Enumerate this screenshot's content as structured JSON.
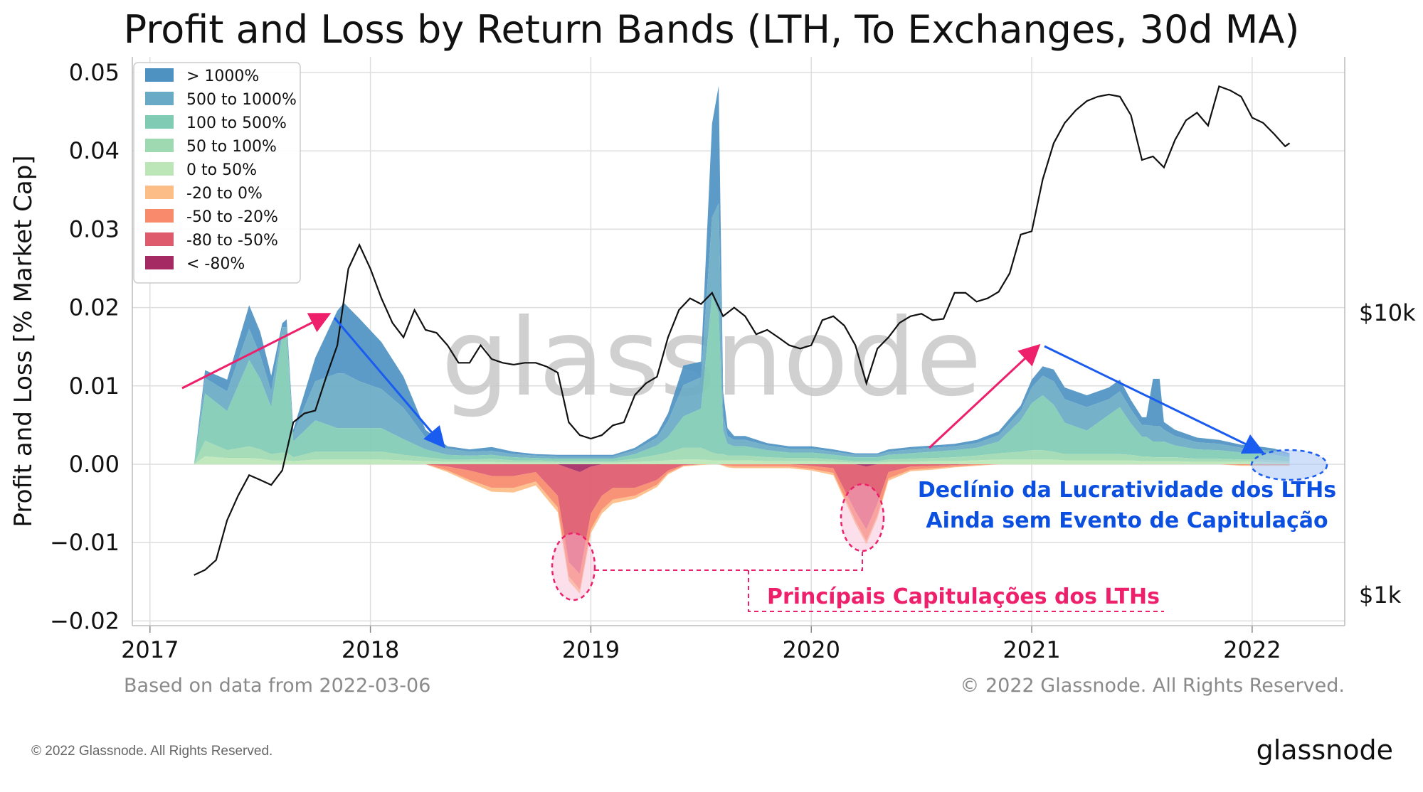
{
  "chart_data": {
    "type": "area",
    "title": "Profit and Loss by Return Bands (LTH, To Exchanges, 30d MA)",
    "ylabel": "Profit and Loss [% Market Cap]",
    "ylim": [
      -0.02,
      0.05
    ],
    "y_ticks": [
      "0.05",
      "0.04",
      "0.03",
      "0.02",
      "0.01",
      "0.00",
      "−0.01",
      "−0.02"
    ],
    "x_ticks": [
      "2017",
      "2018",
      "2019",
      "2020",
      "2021",
      "2022"
    ],
    "right_axis_ticks": [
      "$10k",
      "$1k"
    ],
    "grid": true,
    "legend_position": "top-left",
    "legend": [
      {
        "label": "> 1000%",
        "color": "#4e92c2"
      },
      {
        "label": "500 to 1000%",
        "color": "#69abc6"
      },
      {
        "label": "100 to 500%",
        "color": "#7fcbb4"
      },
      {
        "label": "50 to 100%",
        "color": "#9fd9b2"
      },
      {
        "label": "0 to 50%",
        "color": "#bde6b8"
      },
      {
        "label": "-20 to 0%",
        "color": "#fdbd87"
      },
      {
        "label": "-50 to -20%",
        "color": "#f98a6b"
      },
      {
        "label": "-80 to -50%",
        "color": "#de5a6d"
      },
      {
        "label": "< -80%",
        "color": "#a52a63"
      }
    ],
    "x": [
      2017.2,
      2017.25,
      2017.35,
      2017.45,
      2017.5,
      2017.55,
      2017.6,
      2017.62,
      2017.65,
      2017.75,
      2017.85,
      2017.88,
      2017.95,
      2018.05,
      2018.15,
      2018.25,
      2018.35,
      2018.45,
      2018.55,
      2018.65,
      2018.75,
      2018.85,
      2018.9,
      2018.95,
      2019.0,
      2019.05,
      2019.1,
      2019.2,
      2019.3,
      2019.35,
      2019.42,
      2019.5,
      2019.55,
      2019.58,
      2019.6,
      2019.62,
      2019.65,
      2019.7,
      2019.8,
      2019.9,
      2020.0,
      2020.1,
      2020.2,
      2020.25,
      2020.3,
      2020.35,
      2020.45,
      2020.55,
      2020.65,
      2020.75,
      2020.85,
      2020.95,
      2021.0,
      2021.05,
      2021.1,
      2021.15,
      2021.25,
      2021.35,
      2021.4,
      2021.45,
      2021.5,
      2021.52,
      2021.55,
      2021.58,
      2021.6,
      2021.65,
      2021.75,
      2021.85,
      2021.95,
      2022.05,
      2022.1,
      2022.17
    ],
    "series": [
      {
        "name": "> 1000%",
        "values": [
          0,
          0.001,
          0.0015,
          0.003,
          0.003,
          0.002,
          0.0005,
          0.001,
          0.0005,
          0.003,
          0.008,
          0.009,
          0.008,
          0.006,
          0.004,
          0.001,
          0.0003,
          0.0003,
          0.0005,
          0.0003,
          0.0002,
          0.0002,
          0.0002,
          0.0002,
          0.0002,
          0.0002,
          0.0002,
          0.0003,
          0.0005,
          0.001,
          0.0025,
          0.002,
          0.012,
          0.015,
          0.003,
          0.001,
          0.0005,
          0.0005,
          0.0003,
          0.0003,
          0.0003,
          0.0003,
          0.0002,
          0.0002,
          0.0002,
          0.0003,
          0.0003,
          0.0003,
          0.0003,
          0.0004,
          0.0005,
          0.0007,
          0.001,
          0.0012,
          0.0015,
          0.0015,
          0.0015,
          0.0015,
          0.0015,
          0.0012,
          0.001,
          0.001,
          0.006,
          0.006,
          0.001,
          0.0008,
          0.0006,
          0.0005,
          0.0004,
          0.0004,
          0.0003,
          0.0002
        ]
      },
      {
        "name": "500 to 1000%",
        "values": [
          0,
          0.002,
          0.0025,
          0.004,
          0.003,
          0.002,
          0.001,
          0.001,
          0.001,
          0.005,
          0.007,
          0.007,
          0.006,
          0.005,
          0.004,
          0.0015,
          0.0008,
          0.0005,
          0.0005,
          0.0004,
          0.0003,
          0.0003,
          0.0003,
          0.0003,
          0.0003,
          0.0003,
          0.0003,
          0.0005,
          0.001,
          0.002,
          0.004,
          0.004,
          0.01,
          0.014,
          0.002,
          0.001,
          0.0008,
          0.0008,
          0.0006,
          0.0005,
          0.0005,
          0.0004,
          0.0003,
          0.0003,
          0.0003,
          0.0004,
          0.0005,
          0.0005,
          0.0005,
          0.0006,
          0.0008,
          0.0012,
          0.002,
          0.0025,
          0.003,
          0.003,
          0.003,
          0.002,
          0.002,
          0.0018,
          0.0015,
          0.0015,
          0.002,
          0.002,
          0.0015,
          0.0012,
          0.0009,
          0.0008,
          0.0006,
          0.0005,
          0.0005,
          0.0003
        ]
      },
      {
        "name": "100 to 500%",
        "values": [
          0,
          0.006,
          0.005,
          0.011,
          0.009,
          0.006,
          0.015,
          0.015,
          0.002,
          0.004,
          0.003,
          0.003,
          0.003,
          0.003,
          0.002,
          0.001,
          0.0006,
          0.0005,
          0.0005,
          0.0004,
          0.0003,
          0.0003,
          0.0003,
          0.0003,
          0.0003,
          0.0003,
          0.0003,
          0.0006,
          0.0012,
          0.002,
          0.004,
          0.005,
          0.02,
          0.018,
          0.003,
          0.0015,
          0.0012,
          0.0012,
          0.0009,
          0.0007,
          0.0007,
          0.0006,
          0.0005,
          0.0005,
          0.0005,
          0.0006,
          0.0007,
          0.0008,
          0.0009,
          0.001,
          0.0015,
          0.004,
          0.006,
          0.007,
          0.006,
          0.004,
          0.003,
          0.005,
          0.006,
          0.004,
          0.0025,
          0.0025,
          0.002,
          0.002,
          0.002,
          0.0015,
          0.0012,
          0.0011,
          0.0009,
          0.0007,
          0.0007,
          0.0005
        ]
      },
      {
        "name": "50 to 100%",
        "values": [
          0,
          0.002,
          0.001,
          0.0015,
          0.0012,
          0.0008,
          0.001,
          0.001,
          0.0005,
          0.001,
          0.001,
          0.001,
          0.001,
          0.001,
          0.0007,
          0.0005,
          0.0003,
          0.0003,
          0.0004,
          0.0003,
          0.0003,
          0.0002,
          0.0002,
          0.0002,
          0.0002,
          0.0002,
          0.0002,
          0.0004,
          0.0008,
          0.001,
          0.0015,
          0.0015,
          0.001,
          0.0008,
          0.0008,
          0.0006,
          0.0006,
          0.0006,
          0.0005,
          0.0004,
          0.0004,
          0.0003,
          0.0002,
          0.0002,
          0.0002,
          0.0003,
          0.0004,
          0.0004,
          0.0005,
          0.0006,
          0.0008,
          0.001,
          0.0012,
          0.0012,
          0.001,
          0.0008,
          0.0008,
          0.0008,
          0.0008,
          0.0007,
          0.0006,
          0.0006,
          0.0005,
          0.0005,
          0.0005,
          0.0005,
          0.0004,
          0.0004,
          0.0003,
          0.0003,
          0.0003,
          0.0002
        ]
      },
      {
        "name": "0 to 50%",
        "values": [
          0,
          0.001,
          0.0008,
          0.0008,
          0.0007,
          0.0005,
          0.0005,
          0.0005,
          0.0004,
          0.0006,
          0.0006,
          0.0006,
          0.0006,
          0.0006,
          0.0005,
          0.0004,
          0.0003,
          0.0003,
          0.0003,
          0.0002,
          0.0002,
          0.0002,
          0.0002,
          0.0002,
          0.0002,
          0.0002,
          0.0002,
          0.0003,
          0.0004,
          0.0005,
          0.0006,
          0.0006,
          0.0005,
          0.0005,
          0.0005,
          0.0005,
          0.0005,
          0.0005,
          0.0004,
          0.0004,
          0.0004,
          0.0003,
          0.0002,
          0.0002,
          0.0002,
          0.0003,
          0.0003,
          0.0004,
          0.0004,
          0.0005,
          0.0006,
          0.0006,
          0.0006,
          0.0006,
          0.0006,
          0.0005,
          0.0005,
          0.0005,
          0.0005,
          0.0005,
          0.0004,
          0.0004,
          0.0004,
          0.0004,
          0.0004,
          0.0004,
          0.0003,
          0.0003,
          0.0003,
          0.0003,
          0.0002,
          0.0002
        ]
      },
      {
        "name": "-20 to 0%",
        "values": [
          0,
          0,
          0,
          0,
          0,
          0,
          0,
          0,
          0,
          0,
          0,
          0,
          0,
          0,
          0,
          0,
          -0.0002,
          -0.0003,
          -0.0005,
          -0.0006,
          -0.0005,
          -0.0006,
          -0.0006,
          -0.0005,
          -0.0005,
          -0.0005,
          -0.0005,
          -0.0004,
          -0.0003,
          -0.0002,
          -0.0001,
          -0.0001,
          0,
          0,
          -0.0001,
          -0.0002,
          -0.0002,
          -0.0002,
          -0.0002,
          -0.0002,
          -0.0002,
          -0.0003,
          -0.0004,
          -0.0004,
          -0.0004,
          -0.0003,
          -0.0002,
          -0.0002,
          -0.0001,
          -0.0001,
          0,
          0,
          0,
          0,
          0,
          0,
          0,
          0,
          0,
          0,
          0,
          0,
          0,
          0,
          0,
          0,
          0,
          0,
          -0.0001,
          -0.0001,
          -0.0001,
          -0.0001
        ]
      },
      {
        "name": "-50 to -20%",
        "values": [
          0,
          0,
          0,
          0,
          0,
          0,
          0,
          0,
          0,
          0,
          0,
          0,
          0,
          0,
          0,
          0,
          -0.0005,
          -0.0012,
          -0.0015,
          -0.0015,
          -0.0012,
          -0.0015,
          -0.0018,
          -0.002,
          -0.002,
          -0.0018,
          -0.0015,
          -0.001,
          -0.0006,
          -0.0003,
          -0.0001,
          0,
          0,
          0,
          -0.0001,
          -0.0002,
          -0.0003,
          -0.0003,
          -0.0003,
          -0.0003,
          -0.0004,
          -0.0006,
          -0.0012,
          -0.0015,
          -0.0015,
          -0.0008,
          -0.0004,
          -0.0003,
          -0.0002,
          -0.0001,
          0,
          0,
          0,
          0,
          0,
          0,
          0,
          0,
          0,
          0,
          0,
          0,
          0,
          0,
          0,
          0,
          0,
          0,
          -0.0001,
          -0.0001,
          -0.0001,
          -0.0001
        ]
      },
      {
        "name": "-80 to -50%",
        "values": [
          0,
          0,
          0,
          0,
          0,
          0,
          0,
          0,
          0,
          0,
          0,
          0,
          0,
          0,
          0,
          0,
          -0.0003,
          -0.0008,
          -0.0015,
          -0.0015,
          -0.001,
          -0.004,
          -0.012,
          -0.013,
          -0.006,
          -0.004,
          -0.003,
          -0.003,
          -0.002,
          -0.0008,
          -0.0001,
          0,
          0,
          0,
          0,
          0,
          0,
          0,
          0,
          0,
          -0.0002,
          -0.0005,
          -0.006,
          -0.008,
          -0.005,
          -0.001,
          -0.0003,
          -0.0002,
          -0.0001,
          0,
          0,
          0,
          0,
          0,
          0,
          0,
          0,
          0,
          0,
          0,
          0,
          0,
          0,
          0,
          0,
          0,
          0,
          0,
          0,
          0,
          0,
          0
        ]
      },
      {
        "name": "< -80%",
        "values": [
          0,
          0,
          0,
          0,
          0,
          0,
          0,
          0,
          0,
          0,
          0,
          0,
          0,
          0,
          0,
          0,
          0,
          0,
          0,
          0,
          0,
          0,
          -0.0005,
          -0.001,
          -0.0003,
          0,
          0,
          0,
          0,
          0,
          0,
          0,
          0,
          0,
          0,
          0,
          0,
          0,
          0,
          0,
          0,
          0,
          0,
          -0.0003,
          0,
          0,
          0,
          0,
          0,
          0,
          0,
          0,
          0,
          0,
          0,
          0,
          0,
          0,
          0,
          0,
          0,
          0,
          0,
          0,
          0,
          0,
          0,
          0,
          0,
          0,
          0,
          0
        ]
      }
    ],
    "price_series": {
      "x": [
        2017.2,
        2017.25,
        2017.3,
        2017.35,
        2017.4,
        2017.45,
        2017.5,
        2017.55,
        2017.6,
        2017.65,
        2017.7,
        2017.75,
        2017.8,
        2017.85,
        2017.9,
        2017.95,
        2018.0,
        2018.05,
        2018.1,
        2018.15,
        2018.2,
        2018.25,
        2018.3,
        2018.35,
        2018.4,
        2018.45,
        2018.5,
        2018.55,
        2018.6,
        2018.65,
        2018.7,
        2018.75,
        2018.8,
        2018.85,
        2018.9,
        2018.95,
        2019.0,
        2019.05,
        2019.1,
        2019.15,
        2019.2,
        2019.25,
        2019.3,
        2019.35,
        2019.4,
        2019.45,
        2019.5,
        2019.55,
        2019.6,
        2019.65,
        2019.7,
        2019.75,
        2019.8,
        2019.85,
        2019.9,
        2019.95,
        2020.0,
        2020.05,
        2020.1,
        2020.15,
        2020.2,
        2020.25,
        2020.3,
        2020.35,
        2020.4,
        2020.45,
        2020.5,
        2020.55,
        2020.6,
        2020.65,
        2020.7,
        2020.75,
        2020.8,
        2020.85,
        2020.9,
        2020.95,
        2021.0,
        2021.05,
        2021.1,
        2021.15,
        2021.2,
        2021.25,
        2021.3,
        2021.35,
        2021.4,
        2021.45,
        2021.5,
        2021.55,
        2021.6,
        2021.65,
        2021.7,
        2021.75,
        2021.8,
        2021.85,
        2021.9,
        2021.95,
        2022.0,
        2022.05,
        2022.1,
        2022.15,
        2022.17
      ],
      "values": [
        1150,
        1200,
        1300,
        1800,
        2200,
        2600,
        2500,
        2400,
        2700,
        4000,
        4300,
        4400,
        5800,
        7500,
        14000,
        17000,
        14000,
        11000,
        9000,
        8000,
        10000,
        8500,
        8300,
        7500,
        6500,
        6500,
        7500,
        6700,
        6500,
        6400,
        6500,
        6500,
        6300,
        6000,
        4000,
        3600,
        3500,
        3600,
        3900,
        4000,
        5000,
        5500,
        5800,
        8000,
        10000,
        11000,
        10500,
        11500,
        9500,
        10200,
        9500,
        8200,
        8500,
        8000,
        7500,
        7300,
        7500,
        9200,
        9500,
        8800,
        7500,
        5500,
        7300,
        8000,
        9000,
        9500,
        9700,
        9200,
        9300,
        11500,
        11500,
        10700,
        11000,
        11600,
        13500,
        18500,
        19000,
        29000,
        39000,
        46000,
        51000,
        55000,
        57000,
        58000,
        57000,
        49000,
        34000,
        35000,
        32000,
        40000,
        47000,
        50000,
        45000,
        62000,
        60000,
        57000,
        48000,
        46000,
        42000,
        38000,
        39000
      ]
    }
  },
  "annotations": {
    "watermark": "glassnode",
    "decline_line1": "Declínio da Lucratividade dos LTHs",
    "decline_line2": "Ainda sem Evento de Capitulação",
    "capitulation": "Princípais Capitulações dos LTHs"
  },
  "footer": {
    "left": "Based on data from 2022-03-06",
    "right": "© 2022 Glassnode. All Rights Reserved."
  },
  "page_footer": {
    "copyright": "© 2022 Glassnode. All Rights Reserved.",
    "brand": "glassnode"
  },
  "colors": {
    "price_line": "#111111",
    "arrow_up": "#ee1f6b",
    "arrow_down": "#1a5cf0",
    "grid": "#dedede"
  }
}
